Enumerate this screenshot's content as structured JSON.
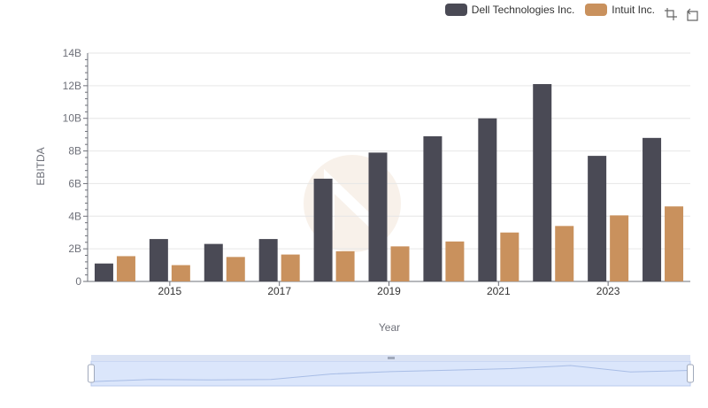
{
  "colors": {
    "dell": "#4a4a55",
    "intuit": "#c9915d",
    "grid": "#e6e6e6",
    "axis": "#6e7079",
    "zoom_fill": "#dbe6fb",
    "zoom_border": "#b9c9ec"
  },
  "legend": [
    {
      "name": "Dell Technologies Inc.",
      "color": "#4a4a55"
    },
    {
      "name": "Intuit Inc.",
      "color": "#c9915d"
    }
  ],
  "toolbox": {
    "icons": [
      "zoom-icon",
      "restore-icon"
    ]
  },
  "chart_data": {
    "type": "bar",
    "xlabel": "Year",
    "ylabel": "EBITDA",
    "ylim": [
      0,
      14000000000
    ],
    "yticks": [
      "0",
      "2B",
      "4B",
      "6B",
      "8B",
      "10B",
      "12B",
      "14B"
    ],
    "categories": [
      "2014",
      "2015",
      "2016",
      "2017",
      "2018",
      "2019",
      "2020",
      "2021",
      "2022",
      "2023",
      "2024"
    ],
    "xtick_labels": [
      "2015",
      "2017",
      "2019",
      "2021",
      "2023"
    ],
    "series": [
      {
        "name": "Dell Technologies Inc.",
        "values": [
          1100000000,
          2600000000,
          2300000000,
          2600000000,
          6300000000,
          7900000000,
          8900000000,
          10000000000,
          12100000000,
          7700000000,
          8800000000
        ]
      },
      {
        "name": "Intuit Inc.",
        "values": [
          1550000000,
          1000000000,
          1500000000,
          1650000000,
          1850000000,
          2150000000,
          2450000000,
          3000000000,
          3400000000,
          4050000000,
          4600000000
        ]
      }
    ],
    "grid": true,
    "legend_position": "top-right",
    "datazoom": true
  }
}
